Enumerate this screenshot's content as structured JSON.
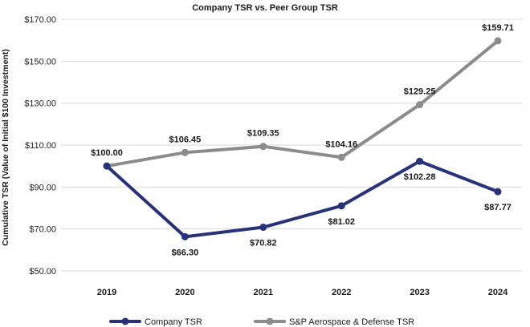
{
  "chart_data": {
    "type": "line",
    "title": "Company TSR vs. Peer Group TSR",
    "xlabel": "",
    "ylabel": "Cumulative TSR (Value of Initial $100 Investment)",
    "categories": [
      "2019",
      "2020",
      "2021",
      "2022",
      "2023",
      "2024"
    ],
    "y_ticks": [
      "$50.00",
      "$70.00",
      "$90.00",
      "$110.00",
      "$130.00",
      "$150.00",
      "$170.00"
    ],
    "ylim": [
      50,
      170
    ],
    "grid": true,
    "legend_position": "bottom",
    "series": [
      {
        "name": "Company TSR",
        "color": "#27327a",
        "values": [
          100.0,
          66.3,
          70.82,
          81.02,
          102.28,
          87.77
        ],
        "labels": [
          "$100.00",
          "$66.30",
          "$70.82",
          "$81.02",
          "$102.28",
          "$87.77"
        ]
      },
      {
        "name": "S&P Aerospace & Defense TSR",
        "color": "#8c8c8c",
        "values": [
          100.0,
          106.45,
          109.35,
          104.16,
          129.25,
          159.71
        ],
        "labels": [
          "$100.00",
          "$106.45",
          "$109.35",
          "$104.16",
          "$129.25",
          "$159.71"
        ]
      }
    ]
  }
}
